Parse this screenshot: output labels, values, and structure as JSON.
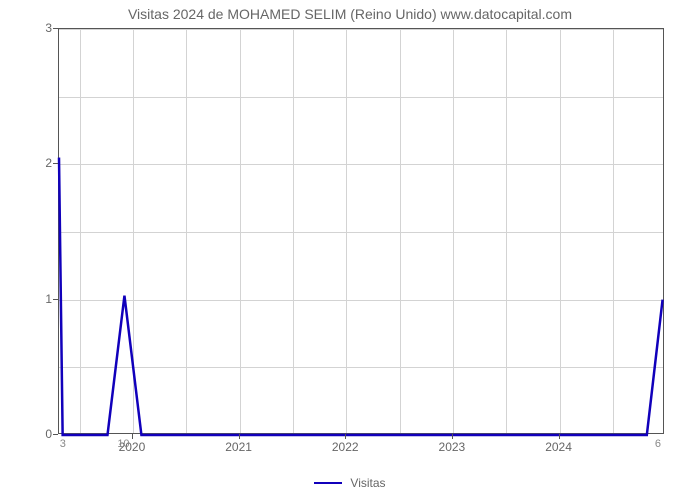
{
  "chart": {
    "type": "line",
    "title": "Visitas 2024 de MOHAMED SELIM (Reino Unido) www.datocapital.com",
    "title_fontsize": 14,
    "title_color": "#666666",
    "background_color": "#ffffff",
    "plot_border_color": "#555555",
    "grid_color": "#d3d3d3",
    "y_axis": {
      "min": 0,
      "max": 3,
      "ticks": [
        0,
        1,
        2,
        3
      ],
      "tick_labels": [
        "0",
        "1",
        "2",
        "3"
      ],
      "label_color": "#666666"
    },
    "x_axis": {
      "domain_min": 0,
      "domain_max": 1,
      "major_ticks": [
        {
          "pos": 0.122,
          "label": "2020"
        },
        {
          "pos": 0.298,
          "label": "2021"
        },
        {
          "pos": 0.474,
          "label": "2022"
        },
        {
          "pos": 0.65,
          "label": "2023"
        },
        {
          "pos": 0.826,
          "label": "2024"
        }
      ],
      "minor_labels": [
        {
          "pos": 0.008,
          "label": "3"
        },
        {
          "pos": 0.108,
          "label": "10"
        },
        {
          "pos": 0.99,
          "label": "6"
        }
      ],
      "label_color": "#666666"
    },
    "series": {
      "name": "Visitas",
      "color": "#1100bb",
      "line_width": 2.5,
      "points": [
        {
          "x": 0.0,
          "y": 2.05
        },
        {
          "x": 0.006,
          "y": 0.0
        },
        {
          "x": 0.08,
          "y": 0.0
        },
        {
          "x": 0.108,
          "y": 1.03
        },
        {
          "x": 0.136,
          "y": 0.0
        },
        {
          "x": 0.97,
          "y": 0.0
        },
        {
          "x": 0.996,
          "y": 1.0
        }
      ]
    },
    "legend": {
      "label": "Visitas",
      "color": "#1100bb"
    },
    "v_grid_positions": [
      0.034,
      0.122,
      0.21,
      0.298,
      0.386,
      0.474,
      0.562,
      0.65,
      0.738,
      0.826,
      0.914
    ],
    "h_grid_y_values": [
      0.5,
      1.0,
      1.5,
      2.0,
      2.5,
      3.0
    ]
  }
}
